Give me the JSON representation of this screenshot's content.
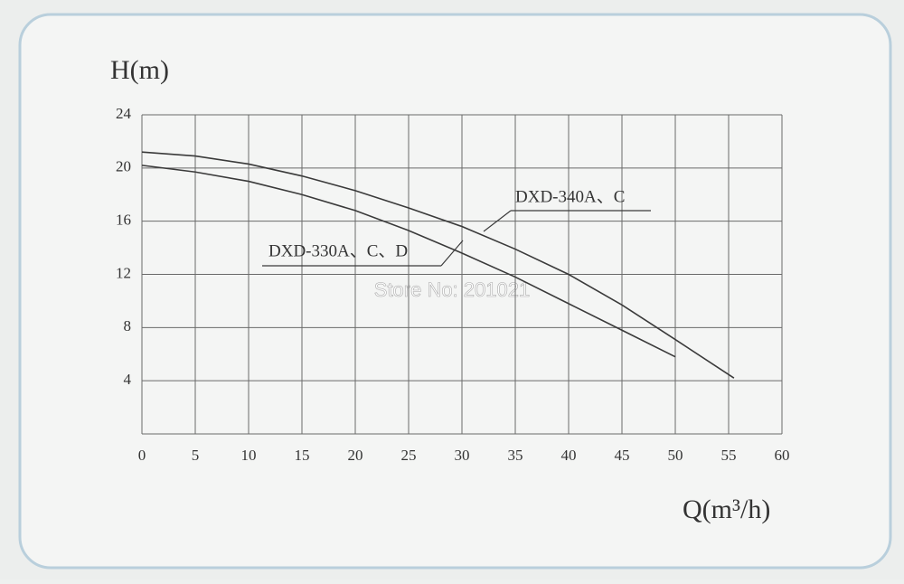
{
  "chart_data": {
    "type": "line",
    "y_label": "H(m)",
    "x_label": "Q(m³/h)",
    "watermark": "Store No: 201021",
    "xlim": [
      0,
      60
    ],
    "xticks": [
      0,
      5,
      10,
      15,
      20,
      25,
      30,
      35,
      40,
      45,
      50,
      55,
      60
    ],
    "ylim": [
      0,
      24
    ],
    "yticks": [
      4,
      8,
      12,
      16,
      20,
      24
    ],
    "grid": true,
    "series": [
      {
        "name": "DXD-340A、C",
        "color": "#3a3a3a",
        "x": [
          0,
          5,
          10,
          15,
          20,
          25,
          30,
          35,
          40,
          45,
          50,
          55.5
        ],
        "values": [
          21.2,
          20.9,
          20.3,
          19.4,
          18.3,
          17,
          15.6,
          13.9,
          12,
          9.7,
          7.1,
          4.2
        ]
      },
      {
        "name": "DXD-330A、C、D",
        "color": "#3a3a3a",
        "x": [
          0,
          5,
          10,
          15,
          20,
          25,
          30,
          35,
          40,
          45,
          50
        ],
        "values": [
          20.2,
          19.7,
          19,
          18,
          16.8,
          15.3,
          13.6,
          11.8,
          9.8,
          7.8,
          5.8
        ]
      }
    ]
  }
}
